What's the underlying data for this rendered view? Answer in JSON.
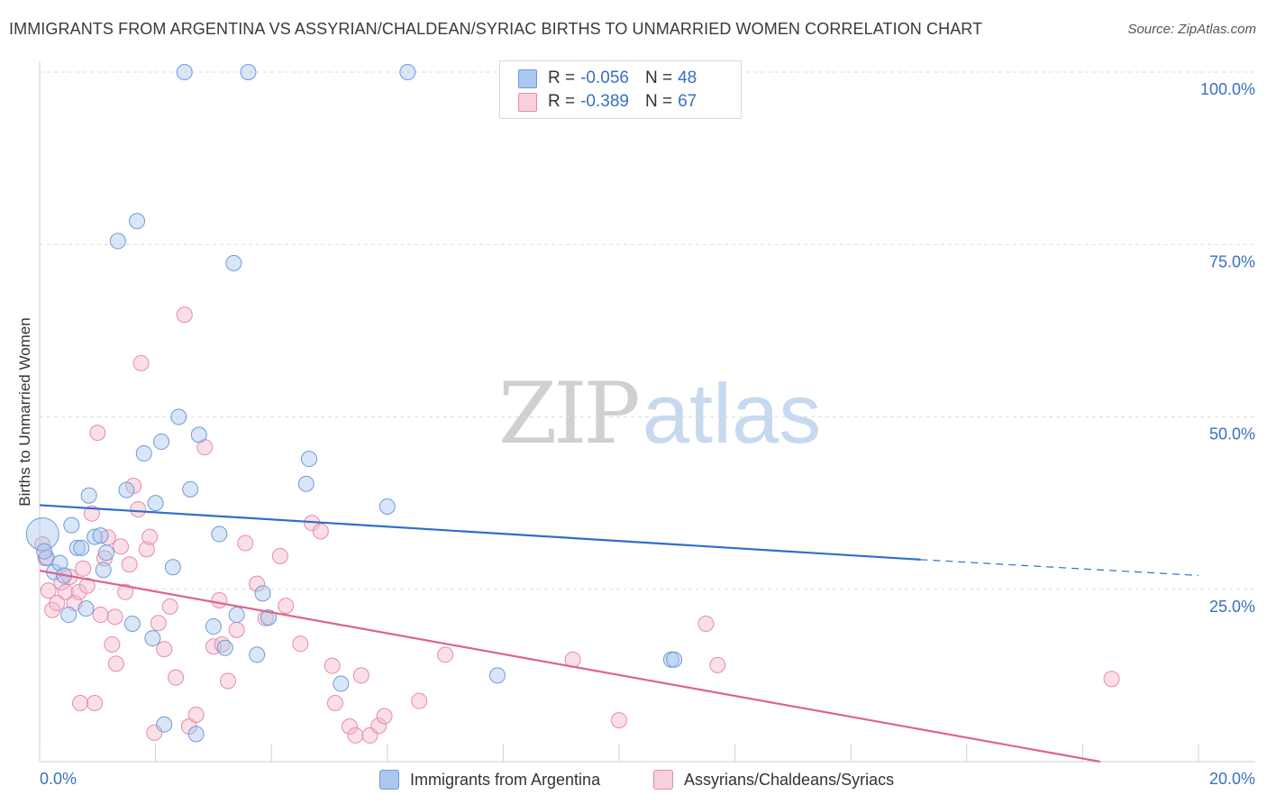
{
  "header": {
    "title": "IMMIGRANTS FROM ARGENTINA VS ASSYRIAN/CHALDEAN/SYRIAC BIRTHS TO UNMARRIED WOMEN CORRELATION CHART",
    "source": "Source: ZipAtlas.com"
  },
  "watermark": {
    "zip": "ZIP",
    "atlas": "atlas"
  },
  "legend": {
    "rows": [
      {
        "r_label": "R =",
        "r_value": "-0.056",
        "n_label": "N =",
        "n_value": "48"
      },
      {
        "r_label": "R =",
        "r_value": "-0.389",
        "n_label": "N =",
        "n_value": "67"
      }
    ]
  },
  "colors": {
    "blue_fill": "#a9c8ef",
    "blue_stroke": "#6f9ad6",
    "blue_line": "#2f6fc9",
    "pink_fill": "#f5b8cb",
    "pink_stroke": "#e98aa8",
    "pink_line": "#e0628e",
    "tick_label": "#3a6fc4",
    "grid": "#dcdcdc"
  },
  "chart_data": {
    "type": "scatter",
    "title": "IMMIGRANTS FROM ARGENTINA VS ASSYRIAN/CHALDEAN/SYRIAC BIRTHS TO UNMARRIED WOMEN CORRELATION CHART",
    "xlabel": "",
    "ylabel": "Births to Unmarried Women",
    "xlim": [
      0,
      20
    ],
    "ylim": [
      0,
      100
    ],
    "x_tick_labels": [
      "0.0%",
      "20.0%"
    ],
    "y_tick_labels": [
      "25.0%",
      "50.0%",
      "75.0%",
      "100.0%"
    ],
    "y_ticks": [
      25,
      50,
      75,
      100
    ],
    "grid": true,
    "legend_position": "top-center",
    "series": [
      {
        "name": "Immigrants from Argentina",
        "r": -0.056,
        "n": 48,
        "trend": {
          "x": [
            0,
            15.2
          ],
          "y": [
            37.2,
            29.3
          ],
          "dashed_to": [
            20,
            27.0
          ]
        },
        "points": [
          [
            0.05,
            33.0
          ],
          [
            0.12,
            29.6
          ],
          [
            0.25,
            27.5
          ],
          [
            0.35,
            28.8
          ],
          [
            0.42,
            27.0
          ],
          [
            0.5,
            21.3
          ],
          [
            0.55,
            34.3
          ],
          [
            0.65,
            31.0
          ],
          [
            0.72,
            31.0
          ],
          [
            0.8,
            22.2
          ],
          [
            0.85,
            38.6
          ],
          [
            0.95,
            32.6
          ],
          [
            1.05,
            32.8
          ],
          [
            1.1,
            27.8
          ],
          [
            1.15,
            30.3
          ],
          [
            1.35,
            75.5
          ],
          [
            1.5,
            39.4
          ],
          [
            1.6,
            20.0
          ],
          [
            1.68,
            78.4
          ],
          [
            1.8,
            44.7
          ],
          [
            1.95,
            17.9
          ],
          [
            2.0,
            37.5
          ],
          [
            2.1,
            46.4
          ],
          [
            2.15,
            5.4
          ],
          [
            2.3,
            28.2
          ],
          [
            2.4,
            50.0
          ],
          [
            2.5,
            100.0
          ],
          [
            2.6,
            39.5
          ],
          [
            2.7,
            4.0
          ],
          [
            2.75,
            47.4
          ],
          [
            3.0,
            19.6
          ],
          [
            3.1,
            33.0
          ],
          [
            3.2,
            16.5
          ],
          [
            3.35,
            72.3
          ],
          [
            3.4,
            21.3
          ],
          [
            3.6,
            100.0
          ],
          [
            3.75,
            15.5
          ],
          [
            3.85,
            24.4
          ],
          [
            3.95,
            20.9
          ],
          [
            4.6,
            40.3
          ],
          [
            4.65,
            43.9
          ],
          [
            5.2,
            11.3
          ],
          [
            6.0,
            37.0
          ],
          [
            6.35,
            100.0
          ],
          [
            7.9,
            12.5
          ],
          [
            10.9,
            14.8
          ],
          [
            10.95,
            14.8
          ],
          [
            0.08,
            30.5
          ]
        ]
      },
      {
        "name": "Assyrians/Chaldeans/Syriacs",
        "r": -0.389,
        "n": 67,
        "trend": {
          "x": [
            0,
            18.3
          ],
          "y": [
            27.7,
            0
          ]
        },
        "points": [
          [
            0.05,
            31.5
          ],
          [
            0.1,
            29.5
          ],
          [
            0.15,
            24.8
          ],
          [
            0.22,
            22.0
          ],
          [
            0.3,
            23.0
          ],
          [
            0.38,
            26.0
          ],
          [
            0.45,
            24.6
          ],
          [
            0.52,
            26.8
          ],
          [
            0.6,
            23.0
          ],
          [
            0.68,
            24.6
          ],
          [
            0.75,
            28.0
          ],
          [
            0.82,
            25.5
          ],
          [
            0.9,
            36.0
          ],
          [
            0.95,
            8.5
          ],
          [
            1.0,
            47.7
          ],
          [
            1.05,
            21.3
          ],
          [
            1.12,
            29.5
          ],
          [
            1.18,
            32.5
          ],
          [
            1.25,
            17.0
          ],
          [
            1.32,
            14.2
          ],
          [
            1.4,
            31.2
          ],
          [
            1.48,
            24.6
          ],
          [
            1.55,
            28.6
          ],
          [
            1.62,
            40.0
          ],
          [
            1.7,
            36.6
          ],
          [
            1.75,
            57.8
          ],
          [
            1.85,
            30.8
          ],
          [
            1.9,
            32.6
          ],
          [
            1.98,
            4.2
          ],
          [
            2.05,
            20.1
          ],
          [
            2.15,
            16.3
          ],
          [
            2.25,
            22.5
          ],
          [
            2.5,
            64.8
          ],
          [
            2.58,
            5.1
          ],
          [
            2.7,
            6.8
          ],
          [
            2.85,
            45.6
          ],
          [
            3.0,
            16.7
          ],
          [
            3.1,
            23.4
          ],
          [
            3.15,
            17.0
          ],
          [
            3.25,
            11.7
          ],
          [
            3.4,
            19.1
          ],
          [
            3.55,
            31.7
          ],
          [
            3.75,
            25.8
          ],
          [
            3.9,
            20.8
          ],
          [
            4.15,
            29.8
          ],
          [
            4.25,
            22.6
          ],
          [
            4.5,
            17.1
          ],
          [
            4.7,
            34.6
          ],
          [
            4.85,
            33.4
          ],
          [
            5.05,
            13.9
          ],
          [
            5.1,
            8.5
          ],
          [
            5.35,
            5.1
          ],
          [
            5.45,
            3.8
          ],
          [
            5.55,
            12.5
          ],
          [
            5.7,
            3.8
          ],
          [
            5.85,
            5.2
          ],
          [
            5.95,
            6.6
          ],
          [
            6.55,
            8.8
          ],
          [
            7.0,
            15.5
          ],
          [
            9.2,
            14.8
          ],
          [
            10.0,
            6.0
          ],
          [
            11.5,
            20.0
          ],
          [
            11.7,
            14.0
          ],
          [
            18.5,
            12.0
          ],
          [
            1.3,
            21.0
          ],
          [
            0.7,
            8.5
          ],
          [
            2.35,
            12.2
          ]
        ]
      }
    ]
  },
  "bottom_legend": {
    "series_a": "Immigrants from Argentina",
    "series_b": "Assyrians/Chaldeans/Syriacs"
  },
  "axes": {
    "y_title": "Births to Unmarried Women"
  }
}
